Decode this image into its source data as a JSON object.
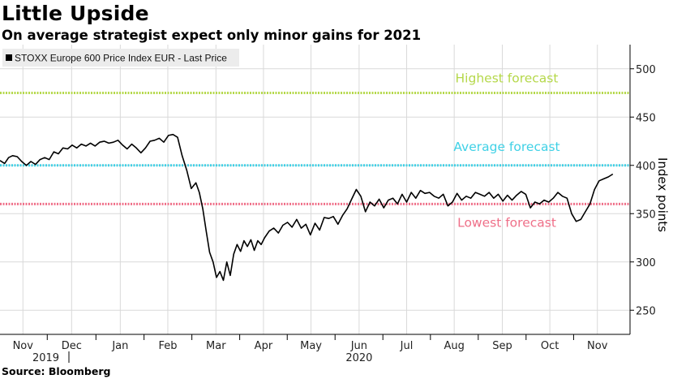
{
  "header": {
    "title": "Little Upside",
    "subtitle": "On average strategist expect only minor gains for 2021"
  },
  "footer": {
    "source": "Source: Bloomberg"
  },
  "colors": {
    "line": "#000000",
    "highest": "#b5d84a",
    "average": "#3fd1e6",
    "lowest": "#ef6f88",
    "grid": "#d9d9d9"
  },
  "chart_data": {
    "type": "line",
    "legend_position": "top-left",
    "legend": "STOXX Europe 600 Price Index EUR - Last Price",
    "ylabel": "Index points",
    "ylim": [
      225,
      525
    ],
    "yticks": [
      250,
      300,
      350,
      400,
      450,
      500
    ],
    "grid": true,
    "x_tick_labels": [
      {
        "label": "Nov",
        "x": 2019.87
      },
      {
        "label": "Dec",
        "x": 2019.955
      },
      {
        "label": "Jan",
        "x": 2020.04
      },
      {
        "label": "Feb",
        "x": 2020.123
      },
      {
        "label": "Mar",
        "x": 2020.207
      },
      {
        "label": "Apr",
        "x": 2020.29
      },
      {
        "label": "May",
        "x": 2020.373
      },
      {
        "label": "Jun",
        "x": 2020.457
      },
      {
        "label": "Jul",
        "x": 2020.54
      },
      {
        "label": "Aug",
        "x": 2020.623
      },
      {
        "label": "Sep",
        "x": 2020.707
      },
      {
        "label": "Oct",
        "x": 2020.79
      },
      {
        "label": "Nov",
        "x": 2020.873
      }
    ],
    "year_labels": [
      {
        "label": "2019",
        "x": 2019.91
      },
      {
        "label": "2020",
        "x": 2020.457
      }
    ],
    "xlim": [
      2019.83,
      2020.93
    ],
    "reference_lines": [
      {
        "label": "Highest forecast",
        "value": 475,
        "color_key": "highest"
      },
      {
        "label": "Average forecast",
        "value": 400,
        "color_key": "average"
      },
      {
        "label": "Lowest forecast",
        "value": 360,
        "color_key": "lowest"
      }
    ],
    "series": [
      {
        "x": [
          2019.83,
          2019.838,
          2019.845,
          2019.852,
          2019.86,
          2019.868,
          2019.876,
          2019.884,
          2019.892,
          2019.9,
          2019.908,
          2019.916,
          2019.924,
          2019.932,
          2019.94,
          2019.948,
          2019.956,
          2019.964,
          2019.972,
          2019.98,
          2019.988,
          2019.996,
          2020.004,
          2020.012,
          2020.02,
          2020.028,
          2020.036,
          2020.044,
          2020.052,
          2020.06,
          2020.068,
          2020.076,
          2020.084,
          2020.092,
          2020.1,
          2020.108,
          2020.116,
          2020.124,
          2020.132,
          2020.14,
          2020.148,
          2020.156,
          2020.164,
          2020.172,
          2020.178,
          2020.184,
          2020.19,
          2020.196,
          2020.202,
          2020.208,
          2020.214,
          2020.22,
          2020.226,
          2020.232,
          2020.238,
          2020.244,
          2020.25,
          2020.256,
          2020.262,
          2020.268,
          2020.274,
          2020.28,
          2020.286,
          2020.292,
          2020.3,
          2020.308,
          2020.316,
          2020.324,
          2020.332,
          2020.34,
          2020.348,
          2020.356,
          2020.364,
          2020.372,
          2020.38,
          2020.388,
          2020.396,
          2020.404,
          2020.412,
          2020.42,
          2020.428,
          2020.436,
          2020.444,
          2020.452,
          2020.46,
          2020.468,
          2020.476,
          2020.484,
          2020.492,
          2020.5,
          2020.508,
          2020.516,
          2020.524,
          2020.532,
          2020.54,
          2020.548,
          2020.556,
          2020.564,
          2020.572,
          2020.58,
          2020.588,
          2020.596,
          2020.604,
          2020.612,
          2020.62,
          2020.628,
          2020.636,
          2020.644,
          2020.652,
          2020.66,
          2020.668,
          2020.676,
          2020.684,
          2020.692,
          2020.7,
          2020.708,
          2020.716,
          2020.724,
          2020.732,
          2020.74,
          2020.748,
          2020.756,
          2020.764,
          2020.772,
          2020.78,
          2020.788,
          2020.796,
          2020.804,
          2020.812,
          2020.82,
          2020.828,
          2020.836,
          2020.844,
          2020.852,
          2020.86,
          2020.868,
          2020.876,
          2020.884,
          2020.892,
          2020.9
        ],
        "values": [
          405,
          402,
          408,
          410,
          409,
          404,
          400,
          404,
          401,
          406,
          408,
          406,
          414,
          412,
          418,
          417,
          421,
          418,
          422,
          420,
          423,
          420,
          424,
          425,
          423,
          424,
          426,
          421,
          417,
          422,
          418,
          413,
          418,
          425,
          426,
          428,
          424,
          431,
          432,
          429,
          410,
          395,
          376,
          382,
          372,
          355,
          332,
          310,
          300,
          284,
          290,
          281,
          300,
          286,
          308,
          318,
          311,
          322,
          316,
          323,
          312,
          322,
          318,
          325,
          332,
          335,
          330,
          338,
          341,
          336,
          344,
          335,
          339,
          328,
          340,
          333,
          346,
          345,
          347,
          339,
          348,
          355,
          365,
          375,
          368,
          352,
          362,
          358,
          365,
          356,
          364,
          366,
          360,
          370,
          362,
          372,
          366,
          374,
          371,
          372,
          368,
          366,
          370,
          358,
          362,
          371,
          364,
          368,
          366,
          372,
          370,
          368,
          372,
          366,
          370,
          363,
          369,
          364,
          369,
          373,
          370,
          356,
          362,
          360,
          364,
          362,
          366,
          372,
          368,
          366,
          350,
          342,
          344,
          352,
          360,
          375,
          384,
          386,
          388,
          391
        ]
      }
    ]
  }
}
